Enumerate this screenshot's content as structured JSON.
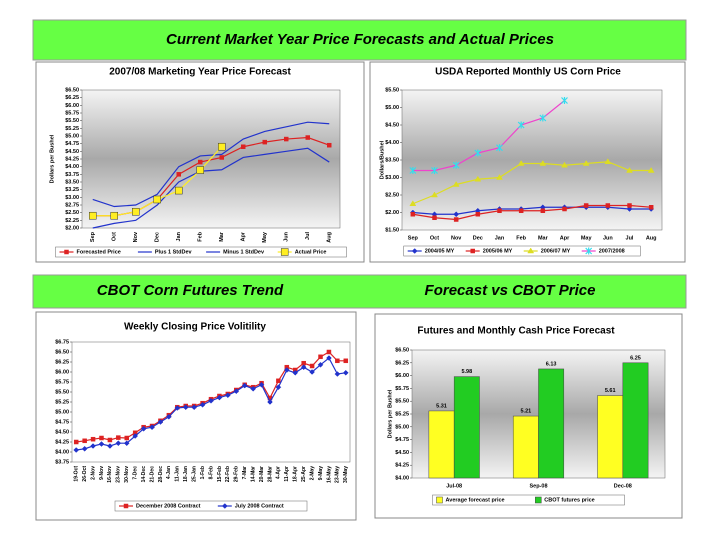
{
  "header": {
    "title": "Current Market Year Price Forecasts and Actual Prices"
  },
  "sections": [
    "CBOT Corn Futures Trend",
    "Forecast vs CBOT Price"
  ],
  "chart_data": [
    {
      "type": "line",
      "title": "2007/08 Marketing Year Price Forecast",
      "y_label": "Dollars per Bushel",
      "categories": [
        "Sep",
        "Oct",
        "Nov",
        "Dec",
        "Jan",
        "Feb",
        "Mar",
        "Apr",
        "May",
        "Jun",
        "Jul",
        "Aug"
      ],
      "ylim": [
        2.0,
        6.5
      ],
      "yticks": [
        {
          "value": 2.0,
          "label": "$2.00"
        },
        {
          "value": 2.25,
          "label": "$2.25"
        },
        {
          "value": 2.5,
          "label": "$2.50"
        },
        {
          "value": 2.75,
          "label": "$2.75"
        },
        {
          "value": 3.0,
          "label": "$3.00"
        },
        {
          "value": 3.25,
          "label": "$3.25"
        },
        {
          "value": 3.5,
          "label": "$3.50"
        },
        {
          "value": 3.75,
          "label": "$3.75"
        },
        {
          "value": 4.0,
          "label": "$4.00"
        },
        {
          "value": 4.25,
          "label": "$4.25"
        },
        {
          "value": 4.5,
          "label": "$4.50"
        },
        {
          "value": 4.75,
          "label": "$4.75"
        },
        {
          "value": 5.0,
          "label": "$5.00"
        },
        {
          "value": 5.25,
          "label": "$5.25"
        },
        {
          "value": 5.5,
          "label": "$5.50"
        },
        {
          "value": 5.75,
          "label": "$5.75"
        },
        {
          "value": 6.0,
          "label": "$6.00"
        },
        {
          "value": 6.25,
          "label": "$6.25"
        },
        {
          "value": 6.5,
          "label": "$6.50"
        }
      ],
      "series": [
        {
          "name": "Forecasted Price",
          "color": "#dd2222",
          "marker": "square",
          "values": [
            2.4,
            2.4,
            2.53,
            2.93,
            3.75,
            4.15,
            4.3,
            4.65,
            4.8,
            4.9,
            4.95,
            4.7
          ]
        },
        {
          "name": "Plus 1 StdDev",
          "color": "#2233cc",
          "values": [
            2.93,
            2.7,
            2.75,
            3.1,
            4.0,
            4.35,
            4.4,
            4.9,
            5.15,
            5.3,
            5.45,
            5.4
          ]
        },
        {
          "name": "Minus 1 StdDev",
          "color": "#2233cc",
          "values": [
            2.0,
            2.15,
            2.25,
            2.75,
            3.5,
            3.85,
            3.9,
            4.3,
            4.4,
            4.5,
            4.6,
            4.15
          ]
        },
        {
          "name": "Actual Price",
          "color": "#ffee22",
          "marker": "bigsquare",
          "values": [
            2.4,
            2.4,
            2.53,
            2.93,
            3.22,
            3.89,
            4.65,
            null,
            null,
            null,
            null,
            null
          ]
        }
      ]
    },
    {
      "type": "line",
      "title": "USDA Reported Monthly US Corn Price",
      "y_label": "Dollars/Bushel",
      "categories": [
        "Sep",
        "Oct",
        "Nov",
        "Dec",
        "Jan",
        "Feb",
        "Mar",
        "Apr",
        "May",
        "Jun",
        "Jul",
        "Aug"
      ],
      "ylim": [
        1.5,
        5.5
      ],
      "yticks": [
        {
          "value": 1.5,
          "label": "$1.50"
        },
        {
          "value": 2.0,
          "label": "$2.00"
        },
        {
          "value": 2.5,
          "label": "$2.50"
        },
        {
          "value": 3.0,
          "label": "$3.00"
        },
        {
          "value": 3.5,
          "label": "$3.50"
        },
        {
          "value": 4.0,
          "label": "$4.00"
        },
        {
          "value": 4.5,
          "label": "$4.50"
        },
        {
          "value": 5.0,
          "label": "$5.00"
        },
        {
          "value": 5.5,
          "label": "$5.50"
        }
      ],
      "series": [
        {
          "name": "2004/05 MY",
          "color": "#2233cc",
          "marker": "diamond",
          "values": [
            2.0,
            1.95,
            1.95,
            2.05,
            2.1,
            2.1,
            2.15,
            2.15,
            2.15,
            2.15,
            2.1,
            2.1
          ]
        },
        {
          "name": "2005/06 MY",
          "color": "#dd2222",
          "marker": "square",
          "values": [
            1.95,
            1.85,
            1.8,
            1.95,
            2.05,
            2.05,
            2.05,
            2.1,
            2.2,
            2.2,
            2.2,
            2.15
          ]
        },
        {
          "name": "2006/07 MY",
          "color": "#dddd22",
          "marker": "triangle",
          "values": [
            2.25,
            2.5,
            2.8,
            2.95,
            3.0,
            3.4,
            3.4,
            3.35,
            3.4,
            3.45,
            3.2,
            3.2
          ]
        },
        {
          "name": "2007/2008",
          "color": "#ee44cc",
          "marker": "star",
          "markerColor": "#33ddee",
          "values": [
            3.2,
            3.2,
            3.35,
            3.7,
            3.85,
            4.5,
            4.7,
            5.2,
            null,
            null,
            null,
            null
          ]
        }
      ]
    },
    {
      "type": "line",
      "title": "Weekly Closing Price Volitility",
      "categories": [
        "19-Oct",
        "26-Oct",
        "2-Nov",
        "9-Nov",
        "16-Nov",
        "23-Nov",
        "30-Nov",
        "7-Dec",
        "14-Dec",
        "21-Dec",
        "28-Dec",
        "4-Jan",
        "11-Jan",
        "18-Jan",
        "25-Jan",
        "1-Feb",
        "8-Feb",
        "15-Feb",
        "22-Feb",
        "29-Feb",
        "7-Mar",
        "14-Mar",
        "20-Mar",
        "28-Mar",
        "4-Apr",
        "11-Apr",
        "18-Apr",
        "25-Apr",
        "2-May",
        "9-May",
        "16-May",
        "23-May",
        "30-May"
      ],
      "ylim": [
        3.75,
        6.75
      ],
      "yticks": [
        {
          "value": 3.75,
          "label": "$3.75"
        },
        {
          "value": 4.0,
          "label": "$4.00"
        },
        {
          "value": 4.25,
          "label": "$4.25"
        },
        {
          "value": 4.5,
          "label": "$4.50"
        },
        {
          "value": 4.75,
          "label": "$4.75"
        },
        {
          "value": 5.0,
          "label": "$5.00"
        },
        {
          "value": 5.25,
          "label": "$5.25"
        },
        {
          "value": 5.5,
          "label": "$5.50"
        },
        {
          "value": 5.75,
          "label": "$5.75"
        },
        {
          "value": 6.0,
          "label": "$6.00"
        },
        {
          "value": 6.25,
          "label": "$6.25"
        },
        {
          "value": 6.5,
          "label": "$6.50"
        },
        {
          "value": 6.75,
          "label": "$6.75"
        }
      ],
      "series": [
        {
          "name": "December 2008 Contract",
          "color": "#dd2222",
          "marker": "square",
          "values": [
            4.25,
            4.28,
            4.32,
            4.35,
            4.3,
            4.36,
            4.35,
            4.48,
            4.62,
            4.65,
            4.78,
            4.92,
            5.12,
            5.15,
            5.15,
            5.22,
            5.32,
            5.4,
            5.45,
            5.55,
            5.68,
            5.62,
            5.72,
            5.35,
            5.78,
            6.12,
            6.05,
            6.22,
            6.15,
            6.38,
            6.5,
            6.28,
            6.28
          ]
        },
        {
          "name": "July 2008 Contract",
          "color": "#2233cc",
          "marker": "diamond",
          "values": [
            4.05,
            4.08,
            4.15,
            4.2,
            4.15,
            4.22,
            4.22,
            4.4,
            4.58,
            4.62,
            4.75,
            4.88,
            5.1,
            5.12,
            5.12,
            5.18,
            5.28,
            5.36,
            5.42,
            5.52,
            5.66,
            5.58,
            5.68,
            5.25,
            5.62,
            6.05,
            5.98,
            6.12,
            6.0,
            6.18,
            6.35,
            5.95,
            5.98
          ]
        }
      ]
    },
    {
      "type": "bar",
      "title": "Futures and Monthly Cash Price Forecast",
      "y_label": "Dollars per Bushel",
      "categories": [
        "Jul-08",
        "Sep-08",
        "Dec-08"
      ],
      "ylim": [
        4.0,
        6.5
      ],
      "yticks": [
        {
          "value": 4.0,
          "label": "$4.00"
        },
        {
          "value": 4.25,
          "label": "$4.25"
        },
        {
          "value": 4.5,
          "label": "$4.50"
        },
        {
          "value": 4.75,
          "label": "$4.75"
        },
        {
          "value": 5.0,
          "label": "$5.00"
        },
        {
          "value": 5.25,
          "label": "$5.25"
        },
        {
          "value": 5.5,
          "label": "$5.50"
        },
        {
          "value": 5.75,
          "label": "$5.75"
        },
        {
          "value": 6.0,
          "label": "$6.00"
        },
        {
          "value": 6.25,
          "label": "$6.25"
        },
        {
          "value": 6.5,
          "label": "$6.50"
        }
      ],
      "series": [
        {
          "name": "Average forecast price",
          "color": "#ffff22",
          "values": [
            5.31,
            5.21,
            5.61
          ]
        },
        {
          "name": "CBOT futures price",
          "color": "#22cc22",
          "values": [
            5.98,
            6.13,
            6.25
          ]
        }
      ]
    }
  ]
}
